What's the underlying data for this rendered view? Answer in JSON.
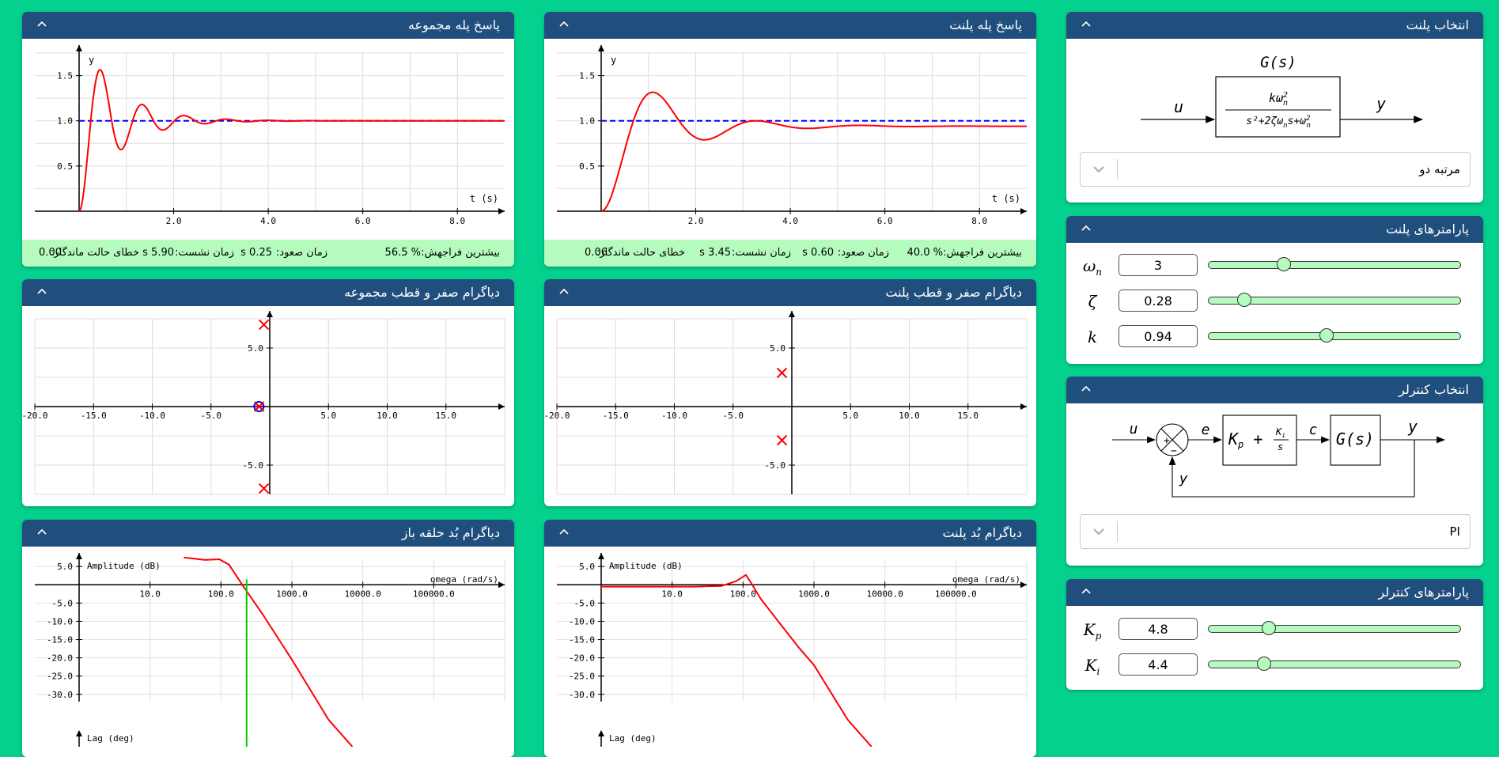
{
  "panels": {
    "closed_step": {
      "title": "پاسخ پله مجموعه"
    },
    "plant_step": {
      "title": "پاسخ پله پلنت"
    },
    "plant_select": {
      "title": "انتخاب پلنت"
    },
    "plant_params": {
      "title": "پارامترهای پلنت"
    },
    "controller_select": {
      "title": "انتخاب کنترلر"
    },
    "controller_params": {
      "title": "پارامترهای کنترلر"
    },
    "closed_pz": {
      "title": "دیاگرام صفر و قطب مجموعه"
    },
    "plant_pz": {
      "title": "دیاگرام صفر و قطب پلنت"
    },
    "open_bode": {
      "title": "دیاگرام بُد حلقه باز"
    },
    "plant_bode": {
      "title": "دیاگرام بُد پلنت"
    }
  },
  "stats_labels": {
    "overshoot": "بیشترین فراجهش:",
    "rise_time": "زمان صعود:",
    "settling_time": "زمان نشست:",
    "ss_error": "خطای حالت ماندگار:"
  },
  "closed_stats": {
    "overshoot": "% 56.5",
    "rise_time": "0.25 s",
    "settling_time": "5.90 s",
    "ss_error": "0.00"
  },
  "plant_stats": {
    "overshoot": "% 40.0",
    "rise_time": "0.60 s",
    "settling_time": "3.45 s",
    "ss_error": "0.06"
  },
  "plant_diagram": {
    "title": "G(s)",
    "input": "u",
    "output": "y"
  },
  "plant_dropdown": {
    "value": "مرتبه دو"
  },
  "controller_diagram": {
    "u": "u",
    "e": "e",
    "c": "c",
    "y_out": "y",
    "y_feedback": "y",
    "plant": "G(s)"
  },
  "controller_dropdown": {
    "value": "PI"
  },
  "plant_params": [
    {
      "symbol": "ωn",
      "value": "3",
      "fraction": 0.3
    },
    {
      "symbol": "ζ",
      "value": "0.28",
      "fraction": 0.14
    },
    {
      "symbol": "k",
      "value": "0.94",
      "fraction": 0.47
    }
  ],
  "controller_params": [
    {
      "symbol": "Kp",
      "value": "4.8",
      "fraction": 0.24
    },
    {
      "symbol": "Ki",
      "value": "4.4",
      "fraction": 0.22
    }
  ],
  "colors": {
    "background": "#05d18f",
    "header": "#214f7d",
    "stats": "#b6fbbe",
    "response": "#ff0000",
    "reference": "#0000ff",
    "crossover": "#00cc00"
  },
  "chart_data": [
    {
      "id": "closed_step",
      "type": "line",
      "xlabel": "t (s)",
      "ylabel": "y",
      "xlim": [
        0,
        9
      ],
      "ylim": [
        0,
        1.75
      ],
      "xticks": [
        2,
        4,
        6,
        8
      ],
      "yticks": [
        0.5,
        1.0,
        1.5
      ],
      "grid": true,
      "series": [
        {
          "kind": "reference",
          "value": 1.0
        },
        {
          "kind": "second_order_step",
          "overshoot": 0.565,
          "period": 0.885,
          "final": 1.0
        }
      ]
    },
    {
      "id": "plant_step",
      "type": "line",
      "xlabel": "t (s)",
      "ylabel": "y",
      "xlim": [
        0,
        9
      ],
      "ylim": [
        0,
        1.75
      ],
      "xticks": [
        2,
        4,
        6,
        8
      ],
      "yticks": [
        0.5,
        1.0,
        1.5
      ],
      "grid": true,
      "series": [
        {
          "kind": "reference",
          "value": 1.0
        },
        {
          "kind": "second_order_step",
          "omega_n": 3,
          "zeta": 0.28,
          "gain": 0.94
        }
      ]
    },
    {
      "id": "closed_pz",
      "type": "scatter",
      "xlim": [
        -20,
        20
      ],
      "ylim": [
        -7.5,
        7.5
      ],
      "xticks": [
        -20,
        -15,
        -10,
        -5,
        5,
        10,
        15
      ],
      "yticks": [
        -5,
        5
      ],
      "grid": true,
      "poles": [
        [
          -0.5,
          7
        ],
        [
          -0.5,
          -7
        ],
        [
          -0.9,
          0
        ]
      ],
      "zeros": [
        [
          -0.92,
          0
        ]
      ]
    },
    {
      "id": "plant_pz",
      "type": "scatter",
      "xlim": [
        -20,
        20
      ],
      "ylim": [
        -7.5,
        7.5
      ],
      "xticks": [
        -20,
        -15,
        -10,
        -5,
        5,
        10,
        15
      ],
      "yticks": [
        -5,
        5
      ],
      "grid": true,
      "poles": [
        [
          -0.84,
          2.88
        ],
        [
          -0.84,
          -2.88
        ]
      ],
      "zeros": []
    },
    {
      "id": "open_bode",
      "type": "line",
      "xlabel": "omega (rad/s)",
      "ylabel": "Amplitude (dB)",
      "phase_label": "Lag (deg)",
      "xlim": [
        1,
        1000000
      ],
      "xscale": "log",
      "ylim": [
        -32,
        7
      ],
      "xticks": [
        10,
        100,
        1000,
        10000,
        100000
      ],
      "xticklabels": [
        "10.0",
        "100.0",
        "1000.0",
        "10000.0",
        "100000.0"
      ],
      "yticks": [
        5,
        -5,
        -10,
        -15,
        -20,
        -25,
        -30
      ],
      "grid": true,
      "magnitude": [
        [
          30,
          7.5
        ],
        [
          60,
          6.8
        ],
        [
          95,
          7
        ],
        [
          130,
          5.5
        ],
        [
          200,
          0
        ],
        [
          400,
          -8.5
        ],
        [
          1000,
          -20.5
        ],
        [
          3300,
          -37
        ]
      ],
      "crossover": 230
    },
    {
      "id": "plant_bode",
      "type": "line",
      "xlabel": "omega (rad/s)",
      "ylabel": "Amplitude (dB)",
      "phase_label": "Lag (deg)",
      "xlim": [
        1,
        1000000
      ],
      "xscale": "log",
      "ylim": [
        -32,
        7
      ],
      "xticks": [
        10,
        100,
        1000,
        10000,
        100000
      ],
      "xticklabels": [
        "10.0",
        "100.0",
        "1000.0",
        "10000.0",
        "100000.0"
      ],
      "yticks": [
        5,
        -5,
        -10,
        -15,
        -20,
        -25,
        -30
      ],
      "grid": true,
      "magnitude": [
        [
          1,
          -0.5
        ],
        [
          20,
          -0.5
        ],
        [
          50,
          -0.3
        ],
        [
          80,
          1.0
        ],
        [
          110,
          2.7
        ],
        [
          130,
          0.5
        ],
        [
          180,
          -4
        ],
        [
          300,
          -9.5
        ],
        [
          600,
          -17
        ],
        [
          1000,
          -22
        ],
        [
          3000,
          -37
        ]
      ]
    }
  ]
}
